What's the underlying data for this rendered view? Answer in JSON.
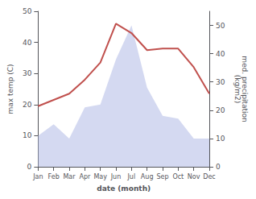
{
  "chart_data": {
    "type": "line",
    "xlabel": "date (month)",
    "ylabel": "max temp (C)",
    "y2label": "med. precipitation\n(kg/m2)",
    "categories": [
      "Jan",
      "Feb",
      "Mar",
      "Apr",
      "May",
      "Jun",
      "Jul",
      "Aug",
      "Sep",
      "Oct",
      "Nov",
      "Dec"
    ],
    "series": [
      {
        "type": "area",
        "axis": "y2",
        "color": "#b8c0e8",
        "values": [
          11,
          15,
          10,
          21,
          22,
          38,
          50,
          28,
          18,
          17,
          10,
          10
        ]
      },
      {
        "type": "line",
        "color": "#c0504d",
        "values": [
          19.5,
          21.5,
          23.5,
          28.0,
          33.5,
          46.0,
          43.0,
          37.5,
          38.0,
          38.0,
          32.0,
          23.5
        ]
      }
    ],
    "ylim": [
      0,
      50
    ],
    "yticks": [
      0,
      10,
      20,
      30,
      40,
      50
    ],
    "y2lim": [
      0,
      55
    ],
    "y2ticks": [
      0,
      10,
      20,
      30,
      40,
      50
    ],
    "grid": false
  }
}
